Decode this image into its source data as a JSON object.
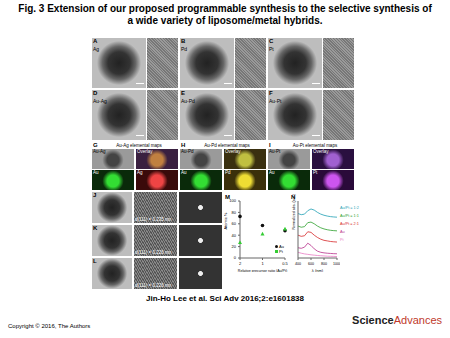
{
  "header": {
    "title": "Fig. 3 Extension of our proposed programmable synthesis to the selective synthesis of a wide variety of liposome/metal hybrids."
  },
  "panels": [
    {
      "letter": "A",
      "label": "Ag"
    },
    {
      "letter": "B",
      "label": "Pd"
    },
    {
      "letter": "C",
      "label": "Pt"
    },
    {
      "letter": "D",
      "label": "Au-Ag"
    },
    {
      "letter": "E",
      "label": "Au-Pd"
    },
    {
      "letter": "F",
      "label": "Au-Pt"
    }
  ],
  "maps": [
    {
      "letter": "G",
      "title": "Au-Ag elemental maps",
      "tiles": [
        "Au-Ag",
        "Overlay",
        "Au",
        "Ag"
      ]
    },
    {
      "letter": "H",
      "title": "Au-Pd elemental maps",
      "tiles": [
        "Au-Pd",
        "Overlay",
        "Au",
        "Pd"
      ]
    },
    {
      "letter": "I",
      "title": "Au-Pt elemental maps",
      "tiles": [
        "Au-Pt",
        "Overlay",
        "Au",
        "Pt"
      ]
    }
  ],
  "lattice": [
    {
      "letter": "J",
      "spacing": "d(111) = 0.235 nm"
    },
    {
      "letter": "K",
      "spacing": "d(111) = 0.226 nm"
    },
    {
      "letter": "L",
      "spacing": "d(111) = 0.226 nm"
    }
  ],
  "chart_data": [
    {
      "panel": "M",
      "type": "scatter",
      "x_label": "Relative precursor ratio (Au/Pt)",
      "y_label": "Atomic %",
      "categories": [
        "2",
        "1",
        "0.5"
      ],
      "series": [
        {
          "name": "Au",
          "color": "#111111",
          "marker": "circle",
          "values": [
            73,
            57,
            48
          ]
        },
        {
          "name": "Pt",
          "color": "#33cc33",
          "marker": "triangle",
          "values": [
            27,
            42,
            51
          ]
        }
      ],
      "ylim": [
        0,
        100
      ],
      "yticks": [
        0,
        20,
        40,
        60,
        80,
        100
      ],
      "legend": "lower right"
    },
    {
      "panel": "N",
      "type": "line",
      "x_label": "λ (nm)",
      "y_label": "Normalized abs. (a.u.)",
      "x": [
        400,
        450,
        500,
        550,
        600,
        650,
        700,
        750,
        800,
        850,
        900,
        950,
        1000
      ],
      "series": [
        {
          "name": "Au/Pt = 1:2",
          "color": "#1f9fb4",
          "values": [
            3.9,
            3.8,
            3.85,
            4.15,
            4.3,
            4.2,
            4.0,
            3.85,
            3.75,
            3.68,
            3.63,
            3.6,
            3.58
          ]
        },
        {
          "name": "Au/Pt = 1:1",
          "color": "#2ca02c",
          "values": [
            2.8,
            2.7,
            2.75,
            3.1,
            3.15,
            3.0,
            2.8,
            2.65,
            2.55,
            2.48,
            2.43,
            2.4,
            2.38
          ]
        },
        {
          "name": "Au/Pt = 2:1",
          "color": "#d62728",
          "values": [
            2.0,
            1.9,
            1.95,
            2.3,
            2.25,
            2.0,
            1.8,
            1.65,
            1.55,
            1.5,
            1.45,
            1.42,
            1.4
          ]
        },
        {
          "name": "Au",
          "color": "#b8308c",
          "values": [
            0.9,
            0.85,
            0.95,
            1.3,
            1.1,
            0.8,
            0.6,
            0.5,
            0.45,
            0.42,
            0.4,
            0.38,
            0.37
          ]
        },
        {
          "name": "Pt",
          "color": "#e87bc4",
          "values": [
            0.5,
            0.42,
            0.36,
            0.32,
            0.28,
            0.25,
            0.22,
            0.2,
            0.18,
            0.16,
            0.15,
            0.14,
            0.13
          ]
        }
      ],
      "xlim": [
        400,
        1000
      ],
      "xticks": [
        400,
        600,
        800,
        1000
      ],
      "ylim": [
        0,
        5
      ],
      "tick_labels": "x",
      "legend": "right"
    }
  ],
  "footer": {
    "citation": "Jin-Ho Lee et al. Sci Adv 2016;2:e1601838",
    "copyright": "Copyright © 2016, The Authors",
    "logo": [
      "Science",
      "Advances"
    ]
  }
}
